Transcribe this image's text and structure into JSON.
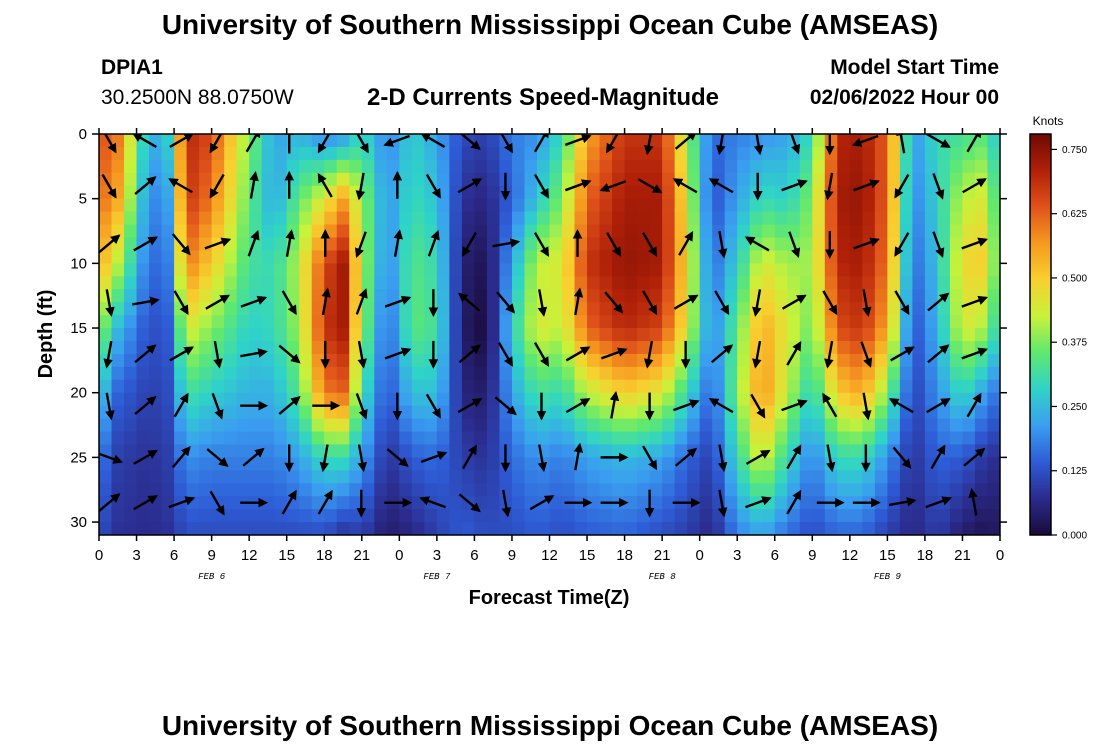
{
  "header": {
    "title": "University of Southern Mississippi Ocean Cube (AMSEAS)",
    "station_id": "DPIA1",
    "station_location": "30.2500N  88.0750W",
    "chart_title": "2-D Currents Speed-Magnitude",
    "model_start_label": "Model Start Time",
    "model_start_value": "02/06/2022 Hour 00"
  },
  "footer": {
    "title": "University of Southern Mississippi Ocean Cube (AMSEAS)"
  },
  "chart_data": {
    "type": "heatmap",
    "title": "2-D Currents Speed-Magnitude",
    "xlabel": "Forecast Time(Z)",
    "ylabel": "Depth (ft)",
    "x_range_hours": [
      0,
      72
    ],
    "y_range_ft": [
      0,
      31
    ],
    "x_tick_values": [
      0,
      3,
      6,
      9,
      12,
      15,
      18,
      21,
      24,
      27,
      30,
      33,
      36,
      39,
      42,
      45,
      48,
      51,
      54,
      57,
      60,
      63,
      66,
      69,
      72
    ],
    "x_tick_labels": [
      "0",
      "3",
      "6",
      "9",
      "12",
      "15",
      "18",
      "21",
      "0",
      "3",
      "6",
      "9",
      "12",
      "15",
      "18",
      "21",
      "0",
      "3",
      "6",
      "9",
      "12",
      "15",
      "18",
      "21",
      "0"
    ],
    "y_tick_values": [
      0,
      5,
      10,
      15,
      20,
      25,
      30
    ],
    "y_tick_labels": [
      "0",
      "5",
      "10",
      "15",
      "20",
      "25",
      "30"
    ],
    "date_labels": [
      {
        "hour": 9,
        "label": "FEB 6"
      },
      {
        "hour": 27,
        "label": "FEB 7"
      },
      {
        "hour": 45,
        "label": "FEB 8"
      },
      {
        "hour": 63,
        "label": "FEB 9"
      }
    ],
    "colorbar": {
      "unit_label": "Knots",
      "range": [
        0,
        0.78
      ],
      "tick_values": [
        0.0,
        0.125,
        0.25,
        0.375,
        0.5,
        0.625,
        0.75
      ],
      "tick_labels": [
        "0.000",
        "0.125",
        "0.250",
        "0.375",
        "0.500",
        "0.625",
        "0.750"
      ],
      "colors": [
        "#1a0a3a",
        "#2b2b8c",
        "#2e5cd6",
        "#3a9ef0",
        "#2fd3c8",
        "#5fe870",
        "#c8f23a",
        "#f8d030",
        "#f59a20",
        "#e0521a",
        "#b02008",
        "#6e0a04"
      ]
    },
    "speed_profiles_knots": [
      {
        "hour": 0,
        "depth_values": [
          0.65,
          0.62,
          0.55,
          0.4,
          0.28,
          0.18,
          0.12
        ]
      },
      {
        "hour": 1.5,
        "depth_values": [
          0.6,
          0.55,
          0.42,
          0.25,
          0.15,
          0.1,
          0.08
        ]
      },
      {
        "hour": 4,
        "depth_values": [
          0.22,
          0.18,
          0.15,
          0.12,
          0.1,
          0.08,
          0.07
        ]
      },
      {
        "hour": 5.5,
        "depth_values": [
          0.28,
          0.22,
          0.18,
          0.14,
          0.12,
          0.1,
          0.08
        ]
      },
      {
        "hour": 7,
        "depth_values": [
          0.7,
          0.68,
          0.6,
          0.45,
          0.32,
          0.2,
          0.12
        ]
      },
      {
        "hour": 9,
        "depth_values": [
          0.65,
          0.6,
          0.5,
          0.38,
          0.28,
          0.18,
          0.12
        ]
      },
      {
        "hour": 12,
        "depth_values": [
          0.38,
          0.35,
          0.32,
          0.28,
          0.24,
          0.18,
          0.12
        ]
      },
      {
        "hour": 14,
        "depth_values": [
          0.22,
          0.22,
          0.3,
          0.3,
          0.24,
          0.18,
          0.12
        ]
      },
      {
        "hour": 16,
        "depth_values": [
          0.25,
          0.35,
          0.42,
          0.4,
          0.34,
          0.22,
          0.12
        ]
      },
      {
        "hour": 18,
        "depth_values": [
          0.18,
          0.45,
          0.65,
          0.68,
          0.6,
          0.3,
          0.12
        ]
      },
      {
        "hour": 19.5,
        "depth_values": [
          0.2,
          0.55,
          0.72,
          0.72,
          0.62,
          0.3,
          0.08
        ]
      },
      {
        "hour": 21,
        "depth_values": [
          0.3,
          0.4,
          0.42,
          0.4,
          0.32,
          0.22,
          0.1
        ]
      },
      {
        "hour": 23,
        "depth_values": [
          0.18,
          0.2,
          0.18,
          0.14,
          0.12,
          0.08,
          0.04
        ]
      },
      {
        "hour": 25,
        "depth_values": [
          0.28,
          0.3,
          0.34,
          0.35,
          0.26,
          0.14,
          0.06
        ]
      },
      {
        "hour": 27,
        "depth_values": [
          0.22,
          0.26,
          0.3,
          0.32,
          0.26,
          0.16,
          0.1
        ]
      },
      {
        "hour": 29,
        "depth_values": [
          0.12,
          0.08,
          0.05,
          0.04,
          0.06,
          0.1,
          0.14
        ]
      },
      {
        "hour": 31,
        "depth_values": [
          0.1,
          0.06,
          0.02,
          0.0,
          0.04,
          0.08,
          0.12
        ]
      },
      {
        "hour": 33,
        "depth_values": [
          0.18,
          0.15,
          0.22,
          0.28,
          0.22,
          0.16,
          0.12
        ]
      },
      {
        "hour": 35,
        "depth_values": [
          0.2,
          0.26,
          0.42,
          0.45,
          0.32,
          0.2,
          0.14
        ]
      },
      {
        "hour": 37,
        "depth_values": [
          0.3,
          0.38,
          0.45,
          0.42,
          0.3,
          0.18,
          0.12
        ]
      },
      {
        "hour": 39,
        "depth_values": [
          0.55,
          0.62,
          0.68,
          0.62,
          0.42,
          0.22,
          0.14
        ]
      },
      {
        "hour": 42,
        "depth_values": [
          0.68,
          0.72,
          0.74,
          0.7,
          0.5,
          0.25,
          0.15
        ]
      },
      {
        "hour": 45,
        "depth_values": [
          0.68,
          0.72,
          0.72,
          0.66,
          0.45,
          0.22,
          0.12
        ]
      },
      {
        "hour": 47,
        "depth_values": [
          0.4,
          0.45,
          0.48,
          0.45,
          0.3,
          0.15,
          0.1
        ]
      },
      {
        "hour": 49,
        "depth_values": [
          0.15,
          0.12,
          0.15,
          0.18,
          0.14,
          0.1,
          0.06
        ]
      },
      {
        "hour": 51,
        "depth_values": [
          0.18,
          0.22,
          0.28,
          0.35,
          0.38,
          0.3,
          0.18
        ]
      },
      {
        "hour": 53,
        "depth_values": [
          0.2,
          0.3,
          0.45,
          0.55,
          0.58,
          0.45,
          0.22
        ]
      },
      {
        "hour": 55,
        "depth_values": [
          0.22,
          0.28,
          0.4,
          0.45,
          0.42,
          0.3,
          0.16
        ]
      },
      {
        "hour": 57,
        "depth_values": [
          0.3,
          0.38,
          0.4,
          0.36,
          0.28,
          0.18,
          0.12
        ]
      },
      {
        "hour": 59,
        "depth_values": [
          0.7,
          0.72,
          0.7,
          0.65,
          0.5,
          0.3,
          0.15
        ]
      },
      {
        "hour": 61,
        "depth_values": [
          0.72,
          0.74,
          0.72,
          0.68,
          0.55,
          0.3,
          0.15
        ]
      },
      {
        "hour": 63,
        "depth_values": [
          0.62,
          0.62,
          0.6,
          0.55,
          0.38,
          0.2,
          0.1
        ]
      },
      {
        "hour": 65,
        "depth_values": [
          0.2,
          0.18,
          0.15,
          0.12,
          0.1,
          0.08,
          0.06
        ]
      },
      {
        "hour": 67,
        "depth_values": [
          0.3,
          0.28,
          0.26,
          0.24,
          0.2,
          0.15,
          0.1
        ]
      },
      {
        "hour": 69,
        "depth_values": [
          0.32,
          0.42,
          0.48,
          0.45,
          0.3,
          0.14,
          0.04
        ]
      },
      {
        "hour": 71,
        "depth_values": [
          0.35,
          0.45,
          0.5,
          0.4,
          0.2,
          0.08,
          0.02
        ]
      },
      {
        "hour": 72,
        "depth_values": [
          0.22,
          0.26,
          0.28,
          0.25,
          0.16,
          0.08,
          0.04
        ]
      }
    ],
    "profile_depths_ft": [
      0,
      5,
      10,
      15,
      20,
      25,
      31
    ],
    "current_vectors": {
      "hour_spacing": 2,
      "depth_rows_ft": [
        0.5,
        4,
        8.5,
        13,
        17,
        21,
        25,
        28.5
      ],
      "angles_deg_from_east_ccw": [
        [
          -60,
          150,
          30,
          -120,
          60,
          90,
          -120,
          -60,
          200,
          150,
          -40,
          -60,
          60,
          20,
          -120,
          -100,
          40,
          -100,
          -80,
          -70,
          -90,
          200,
          100,
          -30,
          60,
          -60
        ],
        [
          -60,
          40,
          150,
          -120,
          80,
          90,
          120,
          -100,
          90,
          -60,
          30,
          -90,
          -60,
          20,
          200,
          -30,
          150,
          150,
          -90,
          20,
          -100,
          20,
          -120,
          -70,
          30,
          180
        ],
        [
          40,
          30,
          -50,
          20,
          70,
          80,
          90,
          -110,
          80,
          70,
          -120,
          10,
          -60,
          90,
          -60,
          -60,
          60,
          -80,
          150,
          -70,
          -90,
          20,
          -120,
          -70,
          20,
          -60
        ],
        [
          -80,
          10,
          -60,
          30,
          20,
          -60,
          80,
          70,
          20,
          -90,
          140,
          -50,
          -80,
          80,
          -50,
          -60,
          30,
          -60,
          -100,
          30,
          -60,
          -80,
          -60,
          40,
          20,
          -80
        ],
        [
          -100,
          40,
          30,
          -80,
          10,
          -40,
          -90,
          -80,
          20,
          -90,
          40,
          -60,
          -60,
          30,
          20,
          -100,
          -90,
          40,
          -100,
          60,
          -100,
          -70,
          30,
          40,
          20,
          -100
        ],
        [
          -80,
          40,
          60,
          -70,
          0,
          40,
          0,
          -70,
          -90,
          -60,
          30,
          -40,
          -90,
          30,
          80,
          -90,
          20,
          150,
          -60,
          20,
          120,
          -80,
          150,
          30,
          60,
          -60
        ],
        [
          -20,
          30,
          50,
          -40,
          40,
          -90,
          -100,
          -80,
          -40,
          20,
          60,
          -90,
          -80,
          80,
          0,
          -60,
          40,
          -80,
          30,
          60,
          -80,
          -90,
          -50,
          60,
          40,
          60
        ],
        [
          40,
          30,
          20,
          -60,
          0,
          60,
          60,
          -90,
          0,
          160,
          -40,
          -80,
          30,
          0,
          0,
          -90,
          0,
          -80,
          20,
          60,
          0,
          0,
          10,
          20,
          100,
          80
        ]
      ]
    }
  }
}
